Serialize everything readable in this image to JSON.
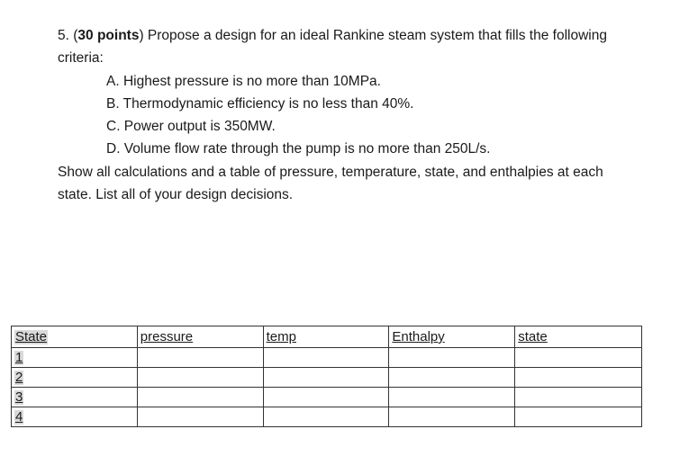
{
  "question": {
    "number_prefix": "5. (",
    "points": "30 points",
    "intro_line1": ") Propose a design for an ideal Rankine steam system that fills the following",
    "intro_line2": "criteria:",
    "criteria": [
      "A. Highest pressure is no more than 10MPa.",
      "B. Thermodynamic efficiency is no less than 40%.",
      "C. Power output is 350MW.",
      "D. Volume flow rate through the pump is no more than 250L/s."
    ],
    "closing_line1": "Show all calculations and a table of pressure, temperature, state, and enthalpies at each",
    "closing_line2": "state. List all of your design decisions."
  },
  "table": {
    "headers": [
      "State",
      "pressure",
      "temp",
      "Enthalpy",
      "state"
    ],
    "rows": [
      [
        "1",
        "",
        "",
        "",
        ""
      ],
      [
        "2",
        "",
        "",
        "",
        ""
      ],
      [
        "3",
        "",
        "",
        "",
        ""
      ],
      [
        "4",
        "",
        "",
        "",
        ""
      ]
    ]
  }
}
